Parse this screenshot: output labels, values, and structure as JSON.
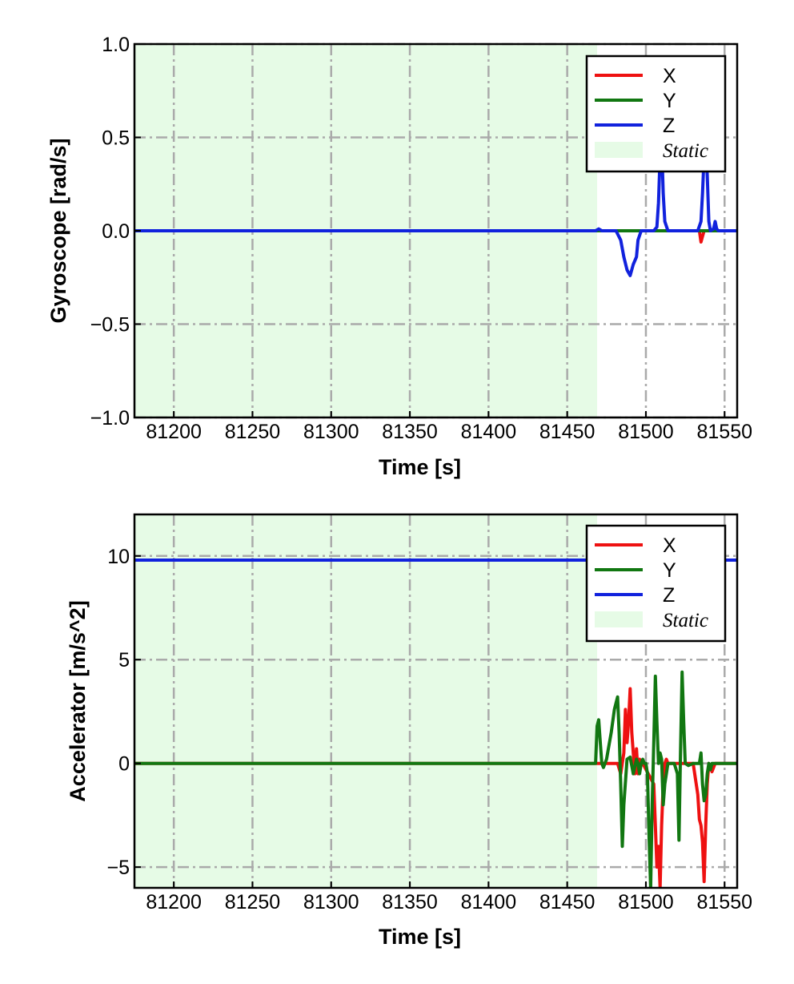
{
  "chart_data": [
    {
      "type": "line",
      "xlabel": "Time [s]",
      "ylabel": "Gyroscope [rad/s]",
      "xlim": [
        81175,
        81558
      ],
      "ylim": [
        -1.0,
        1.0
      ],
      "xticks": [
        81200,
        81250,
        81300,
        81350,
        81400,
        81450,
        81500,
        81550
      ],
      "xtick_labels": [
        "81200",
        "81250",
        "81300",
        "81350",
        "81400",
        "81450",
        "81500",
        "81550"
      ],
      "yticks": [
        -1.0,
        -0.5,
        0.0,
        0.5,
        1.0
      ],
      "ytick_labels": [
        "−1.0",
        "−0.5",
        "0.0",
        "0.5",
        "1.0"
      ],
      "grid": true,
      "legend_position": "top-right",
      "shaded_region": {
        "label": "Static",
        "x_start": 81175,
        "x_end": 81469,
        "color": "#e6fbe6"
      },
      "series": [
        {
          "name": "X",
          "color": "#ee1111",
          "x": [
            81175,
            81469,
            81534,
            81535,
            81536,
            81537,
            81558
          ],
          "y": [
            0,
            0,
            0,
            -0.06,
            -0.03,
            0,
            0
          ]
        },
        {
          "name": "Y",
          "color": "#117711",
          "x": [
            81175,
            81469,
            81558
          ],
          "y": [
            0,
            0,
            0
          ]
        },
        {
          "name": "Z",
          "color": "#1122dd",
          "x": [
            81175,
            81468,
            81470,
            81472,
            81475,
            81481,
            81484,
            81486,
            81488,
            81490,
            81492,
            81494,
            81495,
            81497,
            81505,
            81507,
            81508,
            81509,
            81510,
            81511,
            81512,
            81514,
            81533,
            81535,
            81536,
            81537,
            81538,
            81539,
            81540,
            81541,
            81543,
            81544,
            81545,
            81546,
            81558
          ],
          "y": [
            0,
            0,
            0.01,
            0,
            0,
            0,
            -0.05,
            -0.14,
            -0.21,
            -0.24,
            -0.18,
            -0.14,
            -0.05,
            0,
            0,
            0.02,
            0.15,
            0.4,
            0.48,
            0.2,
            0.05,
            0,
            0,
            0.05,
            0.2,
            0.4,
            0.45,
            0.3,
            0.05,
            0,
            0.01,
            0.05,
            0.01,
            0,
            0
          ]
        }
      ]
    },
    {
      "type": "line",
      "xlabel": "Time [s]",
      "ylabel": "Accelerator [m/s^2]",
      "xlim": [
        81175,
        81558
      ],
      "ylim": [
        -6.0,
        12.0
      ],
      "xticks": [
        81200,
        81250,
        81300,
        81350,
        81400,
        81450,
        81500,
        81550
      ],
      "xtick_labels": [
        "81200",
        "81250",
        "81300",
        "81350",
        "81400",
        "81450",
        "81500",
        "81550"
      ],
      "yticks": [
        -5,
        0,
        5,
        10
      ],
      "ytick_labels": [
        "−5",
        "0",
        "5",
        "10"
      ],
      "grid": true,
      "legend_position": "top-right",
      "shaded_region": {
        "label": "Static",
        "x_start": 81175,
        "x_end": 81469,
        "color": "#e6fbe6"
      },
      "series": [
        {
          "name": "X",
          "color": "#ee1111",
          "x": [
            81175,
            81469,
            81482,
            81484,
            81486,
            81487,
            81488,
            81489,
            81490,
            81491,
            81492,
            81493,
            81494,
            81495,
            81496,
            81497,
            81498,
            81505,
            81506,
            81507,
            81508,
            81509,
            81510,
            81511,
            81512,
            81513,
            81514,
            81515,
            81530,
            81533,
            81534,
            81535,
            81536,
            81537,
            81538,
            81539,
            81540,
            81542,
            81544,
            81546,
            81558
          ],
          "y": [
            0,
            0,
            0,
            -0.5,
            0.5,
            2.6,
            1.0,
            2.0,
            3.6,
            1.5,
            0.5,
            -0.5,
            0.7,
            -0.5,
            0.2,
            0,
            0,
            -1.0,
            -3.0,
            -5.0,
            -4.0,
            -6.0,
            -3.0,
            -1.0,
            0,
            0.2,
            0,
            0,
            0,
            -1.5,
            -2.7,
            -3.0,
            -3.8,
            -5.7,
            -3.0,
            -1.0,
            0,
            -0.4,
            0,
            0,
            0
          ]
        },
        {
          "name": "Y",
          "color": "#117711",
          "x": [
            81175,
            81468,
            81469,
            81470,
            81471,
            81472,
            81473,
            81475,
            81478,
            81480,
            81482,
            81483,
            81484,
            81485,
            81486,
            81488,
            81490,
            81492,
            81494,
            81495,
            81496,
            81497,
            81498,
            81499,
            81500,
            81501,
            81502,
            81503,
            81504,
            81505,
            81506,
            81507,
            81508,
            81509,
            81510,
            81511,
            81512,
            81514,
            81516,
            81518,
            81520,
            81521,
            81522,
            81523,
            81524,
            81525,
            81527,
            81530,
            81534,
            81535,
            81536,
            81537,
            81538,
            81539,
            81540,
            81541,
            81542,
            81544,
            81558
          ],
          "y": [
            0,
            0,
            1.8,
            2.1,
            1.0,
            0,
            -0.2,
            0.2,
            1.5,
            2.6,
            3.2,
            1.5,
            -1.0,
            -4.0,
            -2.0,
            0.2,
            0.3,
            -0.5,
            0.2,
            0,
            -0.5,
            0,
            0.2,
            0,
            0,
            -0.5,
            -3.5,
            -6.0,
            -2.0,
            1.0,
            4.2,
            2.0,
            0,
            0.5,
            0.2,
            -2.0,
            -1.0,
            0,
            0,
            0,
            -0.5,
            -3.7,
            0.5,
            4.4,
            2.0,
            0,
            -0.1,
            0,
            0,
            0.5,
            -1.0,
            -1.8,
            -1.5,
            -0.5,
            0,
            -0.3,
            0,
            0,
            0
          ]
        },
        {
          "name": "Z",
          "color": "#1122dd",
          "x": [
            81175,
            81558
          ],
          "y": [
            9.8,
            9.8
          ]
        }
      ]
    }
  ]
}
